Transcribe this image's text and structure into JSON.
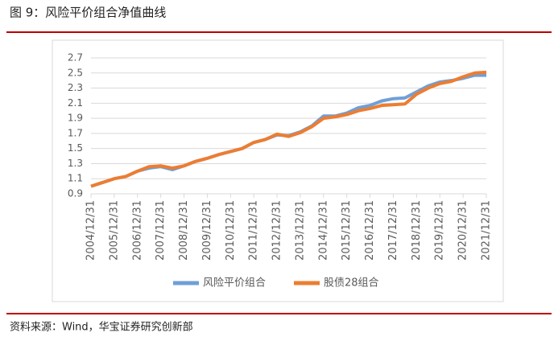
{
  "chart_data": {
    "type": "line",
    "title": "图 9：风险平价组合净值曲线",
    "source": "资料来源：Wind，华宝证券研究创新部",
    "categories": [
      "2004/12/31",
      null,
      "2005/12/31",
      null,
      "2006/12/31",
      null,
      "2007/12/31",
      null,
      "2008/12/31",
      null,
      "2009/12/31",
      null,
      "2010/12/31",
      null,
      "2011/12/31",
      null,
      "2012/12/31",
      null,
      "2013/12/31",
      null,
      "2014/12/31",
      null,
      "2015/12/31",
      null,
      "2016/12/31",
      null,
      "2017/12/31",
      null,
      "2018/12/31",
      null,
      "2019/12/31",
      null,
      "2020/12/31",
      null,
      "2021/12/31"
    ],
    "series": [
      {
        "name": "风险平价组合",
        "color": "#6f9fd8",
        "values": [
          1.0,
          1.05,
          1.1,
          1.13,
          1.2,
          1.24,
          1.26,
          1.22,
          1.27,
          1.33,
          1.37,
          1.42,
          1.46,
          1.5,
          1.58,
          1.62,
          1.68,
          1.67,
          1.72,
          1.8,
          1.93,
          1.93,
          1.97,
          2.04,
          2.07,
          2.13,
          2.16,
          2.17,
          2.25,
          2.33,
          2.38,
          2.4,
          2.43,
          2.47,
          2.47
        ]
      },
      {
        "name": "股债28组合",
        "color": "#ed7d31",
        "values": [
          1.0,
          1.05,
          1.1,
          1.13,
          1.2,
          1.26,
          1.27,
          1.24,
          1.27,
          1.33,
          1.37,
          1.42,
          1.46,
          1.5,
          1.58,
          1.62,
          1.69,
          1.66,
          1.71,
          1.79,
          1.9,
          1.92,
          1.95,
          2.0,
          2.03,
          2.07,
          2.08,
          2.09,
          2.22,
          2.3,
          2.36,
          2.39,
          2.45,
          2.5,
          2.51
        ]
      }
    ],
    "ylim": [
      0.9,
      2.7
    ],
    "yticks": [
      0.9,
      1.1,
      1.3,
      1.5,
      1.7,
      1.9,
      2.1,
      2.3,
      2.5,
      2.7
    ],
    "grid": true
  }
}
